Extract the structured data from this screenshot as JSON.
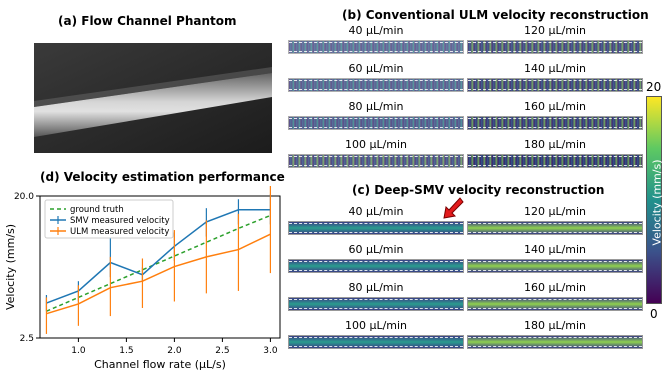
{
  "panels": {
    "a": {
      "title": "(a) Flow Channel Phantom"
    },
    "b": {
      "title": "(b) Conventional ULM velocity reconstruction",
      "labels": [
        "40 µL/min",
        "120 µL/min",
        "60 µL/min",
        "140 µL/min",
        "80 µL/min",
        "160 µL/min",
        "100 µL/min",
        "180 µL/min"
      ]
    },
    "c": {
      "title": "(c) Deep-SMV velocity reconstruction",
      "labels": [
        "40 µL/min",
        "120 µL/min",
        "60 µL/min",
        "140 µL/min",
        "80 µL/min",
        "160 µL/min",
        "100 µL/min",
        "180 µL/min"
      ]
    },
    "d": {
      "title": "(d) Velocity estimation performance"
    }
  },
  "colorbar": {
    "label": "Velocity (mm/s)",
    "max": "20",
    "min": "0",
    "colors": [
      "#440154",
      "#3b528b",
      "#21918c",
      "#5ec962",
      "#fde725"
    ]
  },
  "chart_data": {
    "type": "line",
    "title": "(d) Velocity estimation performance",
    "xlabel": "Channel flow rate (µL/s)",
    "ylabel": "Velocity (mm/s)",
    "xlim": [
      0.6,
      3.1
    ],
    "ylim": [
      2.5,
      20.0
    ],
    "xticks": [
      "1.0",
      "1.5",
      "2.0",
      "2.5",
      "3.0"
    ],
    "yticks": [
      "2.5",
      "20.0"
    ],
    "x": [
      0.667,
      1.0,
      1.333,
      1.667,
      2.0,
      2.333,
      2.667,
      3.0
    ],
    "legend_position": "top-left",
    "series": [
      {
        "name": "ground truth",
        "color": "#2ca02c",
        "style": "dashed",
        "values": [
          5.8,
          7.5,
          9.2,
          10.9,
          12.6,
          14.3,
          16.0,
          17.6
        ]
      },
      {
        "name": "SMV measured velocity",
        "color": "#1f77b4",
        "values": [
          6.8,
          8.3,
          11.8,
          10.3,
          13.8,
          16.8,
          18.3,
          18.3
        ],
        "err_low": [
          5.8,
          7.0,
          10.0,
          9.5,
          12.0,
          15.0,
          16.5,
          16.5
        ],
        "err_high": [
          7.8,
          9.5,
          15.2,
          11.2,
          15.5,
          18.5,
          19.6,
          20.2
        ]
      },
      {
        "name": "ULM measured velocity",
        "color": "#ff7f0e",
        "values": [
          5.5,
          6.7,
          8.7,
          9.5,
          11.3,
          12.5,
          13.4,
          15.3
        ],
        "err_low": [
          3.0,
          4.0,
          5.2,
          6.2,
          7.0,
          8.0,
          8.3,
          10.5
        ],
        "err_high": [
          7.5,
          9.0,
          12.5,
          12.3,
          15.8,
          17.0,
          17.8,
          21.5
        ]
      }
    ]
  }
}
